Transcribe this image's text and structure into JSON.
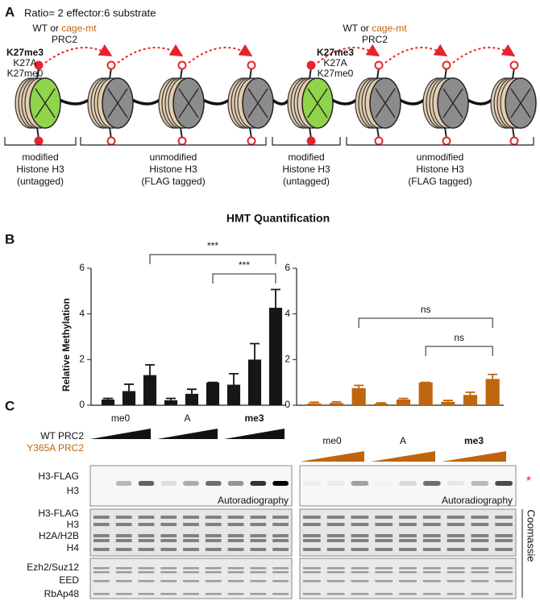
{
  "panel_a": {
    "label": "A",
    "ratio": "Ratio= 2 effector:6 substrate",
    "enzyme_groups": [
      {
        "prefix": "WT or",
        "mutant": "cage-mt",
        "complex": "PRC2",
        "marks": [
          "K27me3",
          "K27A",
          "K27me0"
        ]
      },
      {
        "prefix": "WT or",
        "mutant": "cage-mt",
        "complex": "PRC2",
        "marks": [
          "K27me3",
          "K27A",
          "K27me0"
        ]
      }
    ],
    "brackets": [
      {
        "lines": [
          "modified",
          "Histone H3",
          "(untagged)"
        ]
      },
      {
        "lines": [
          "unmodified",
          "Histone H3",
          "(FLAG tagged)"
        ]
      },
      {
        "lines": [
          "modified",
          "Histone H3",
          "(untagged)"
        ]
      },
      {
        "lines": [
          "unmodified",
          "Histone H3",
          "(FLAG tagged)"
        ]
      }
    ]
  },
  "panel_b": {
    "label": "B",
    "title": "HMT Quantification"
  },
  "chart_data": [
    {
      "type": "bar",
      "y_label": "Relative Methylation",
      "color": "#161616",
      "values": [
        0.25,
        0.62,
        1.32,
        0.22,
        0.5,
        1.0,
        0.9,
        2.0,
        4.27
      ],
      "errors": [
        0.05,
        0.3,
        0.45,
        0.08,
        0.2,
        0,
        0.48,
        0.7,
        0.8
      ],
      "ylim": [
        0,
        6
      ],
      "yticks": [
        0,
        2,
        4,
        6
      ],
      "annotations": [
        "***",
        "***"
      ]
    },
    {
      "type": "bar",
      "color": "#c0650f",
      "values": [
        0.08,
        0.1,
        0.75,
        0.07,
        0.25,
        1.0,
        0.15,
        0.45,
        1.15
      ],
      "errors": [
        0.05,
        0.05,
        0.12,
        0.03,
        0.05,
        0,
        0.06,
        0.12,
        0.2
      ],
      "ylim": [
        0,
        6
      ],
      "yticks": [
        0,
        2,
        4,
        6
      ],
      "annotations": [
        "ns",
        "ns"
      ]
    }
  ],
  "panel_c": {
    "label": "C",
    "wt": "WT PRC2",
    "mutant": "Y365A PRC2",
    "groups_left": [
      "me0",
      "A",
      "me3"
    ],
    "groups_right": [
      "me0",
      "A",
      "me3"
    ],
    "autorad_labels": [
      "H3-FLAG",
      "H3"
    ],
    "autorad_caption": [
      "Autoradiography",
      "Autoradiography"
    ],
    "star": "*",
    "histone_labels": [
      "H3-FLAG",
      "H3",
      "H2A/H2B",
      "H4"
    ],
    "complex_labels": [
      "Ezh2/Suz12",
      "EED",
      "RbAp48"
    ],
    "stain": "Coomassie"
  }
}
